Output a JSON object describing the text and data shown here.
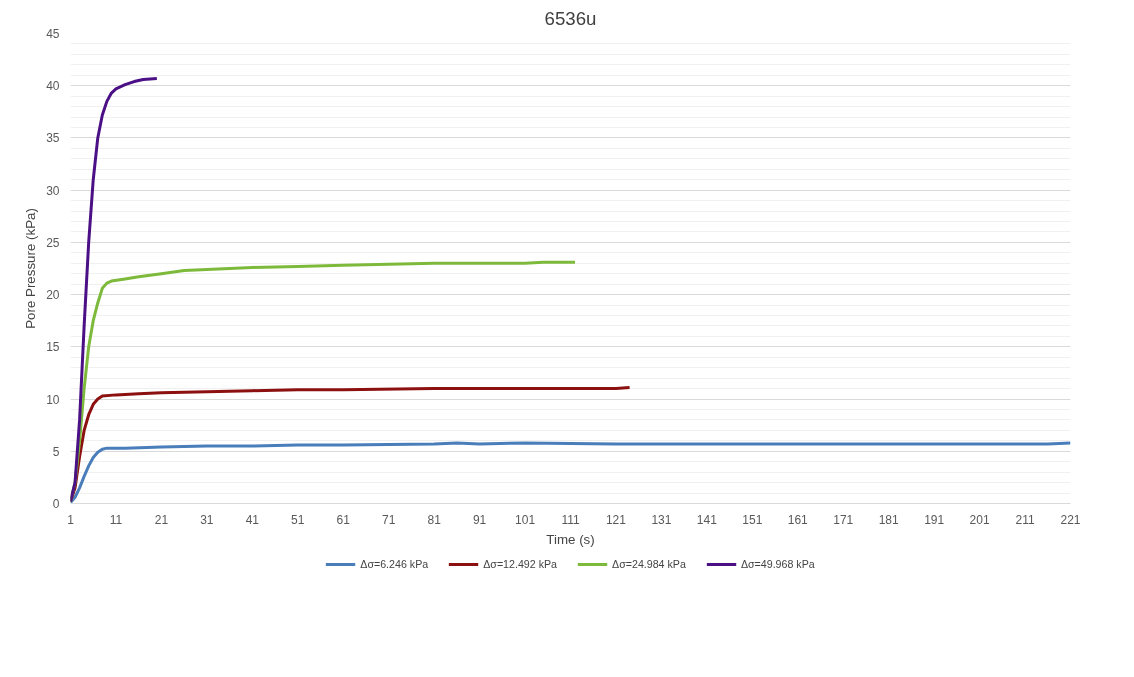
{
  "chart_data": {
    "type": "line",
    "title": "6536u",
    "xlabel": "Time (s)",
    "ylabel": "Pore Pressure (kPa)",
    "xlim": [
      1,
      221
    ],
    "xticks": [
      1,
      11,
      21,
      31,
      41,
      51,
      61,
      71,
      81,
      91,
      101,
      111,
      121,
      131,
      141,
      151,
      161,
      171,
      181,
      191,
      201,
      211,
      221
    ],
    "ylim": [
      0,
      45
    ],
    "yticks": [
      0,
      5,
      10,
      15,
      20,
      25,
      30,
      35,
      40,
      45
    ],
    "grid": "y",
    "legend": "bottom",
    "marker": "none",
    "line_style": "solid",
    "series": [
      {
        "name": "Δσ=6.246 kPa",
        "color": "#4a7ebb",
        "x": [
          1,
          2,
          3,
          4,
          5,
          6,
          7,
          8,
          9,
          13,
          21,
          31,
          41,
          51,
          61,
          81,
          86,
          91,
          101,
          121,
          141,
          161,
          171,
          201,
          216,
          221
        ],
        "values": [
          0.1,
          0.6,
          1.5,
          2.6,
          3.6,
          4.4,
          4.9,
          5.2,
          5.3,
          5.3,
          5.4,
          5.5,
          5.5,
          5.6,
          5.6,
          5.7,
          5.8,
          5.7,
          5.8,
          5.7,
          5.7,
          5.7,
          5.7,
          5.7,
          5.7,
          5.8
        ]
      },
      {
        "name": "Δσ=12.492 kPa",
        "color": "#8c1010",
        "x": [
          1,
          2,
          3,
          4,
          5,
          6,
          7,
          8,
          11,
          16,
          21,
          31,
          41,
          51,
          61,
          81,
          91,
          101,
          121,
          124
        ],
        "values": [
          0.2,
          1.5,
          4.5,
          7,
          8.5,
          9.5,
          10,
          10.3,
          10.4,
          10.5,
          10.6,
          10.7,
          10.8,
          10.9,
          10.9,
          11,
          11,
          11,
          11,
          11.1
        ]
      },
      {
        "name": "Δσ=24.984 kPa",
        "color": "#7dba3c",
        "x": [
          1,
          2,
          3,
          4,
          5,
          6,
          7,
          8,
          9,
          10,
          13,
          16,
          21,
          26,
          31,
          41,
          51,
          61,
          71,
          81,
          91,
          101,
          105,
          112
        ],
        "values": [
          0.2,
          2,
          6,
          11,
          15,
          17.5,
          19.2,
          20.6,
          21.1,
          21.3,
          21.5,
          21.7,
          22,
          22.3,
          22.4,
          22.6,
          22.7,
          22.8,
          22.9,
          23,
          23,
          23,
          23.1,
          23.1
        ]
      },
      {
        "name": "Δσ=49.968 kPa",
        "color": "#4b1085",
        "x": [
          1,
          2,
          3,
          4,
          5,
          6,
          7,
          8,
          9,
          10,
          11,
          13,
          15,
          17,
          20
        ],
        "values": [
          0.2,
          2,
          8,
          17,
          25,
          31,
          35,
          37.2,
          38.5,
          39.3,
          39.7,
          40.1,
          40.4,
          40.6,
          40.7
        ]
      }
    ]
  }
}
